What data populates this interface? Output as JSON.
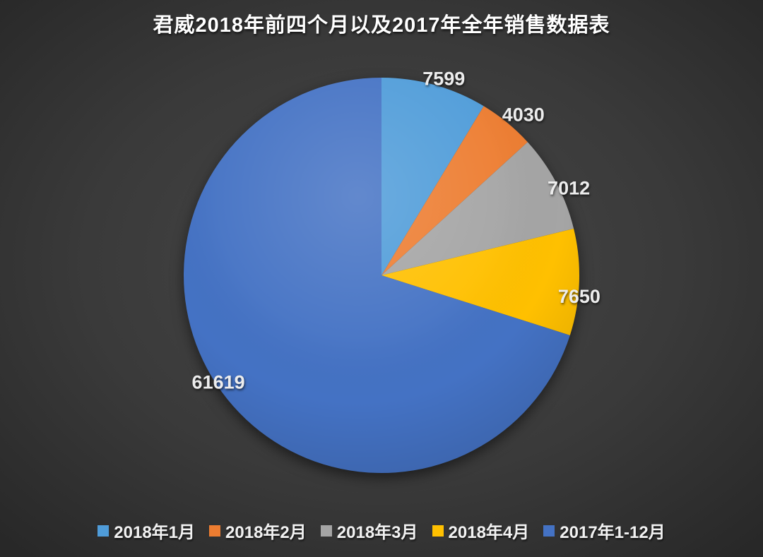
{
  "page": {
    "background_center": "#474747",
    "background_mid": "#3a3a3a",
    "background_edge": "#282828"
  },
  "chart_data": {
    "type": "pie",
    "title": "君威2018年前四个月以及2017年全年销售数据表",
    "categories": [
      "2018年1月",
      "2018年2月",
      "2018年3月",
      "2018年4月",
      "2017年1-12月"
    ],
    "values": [
      7599,
      4030,
      7012,
      7650,
      61619
    ],
    "colors": [
      "#4f9cd9",
      "#ed7d31",
      "#a5a5a5",
      "#ffc000",
      "#4472c4"
    ],
    "data_labels": [
      "7599",
      "4030",
      "7012",
      "7650",
      "61619"
    ],
    "title_color": "#ffffff",
    "label_color": "#ededed",
    "legend_text_color": "#f2f2f2",
    "legend_position": "bottom",
    "start_angle_deg": 0,
    "direction": "clockwise",
    "data_labels_shown": true
  }
}
